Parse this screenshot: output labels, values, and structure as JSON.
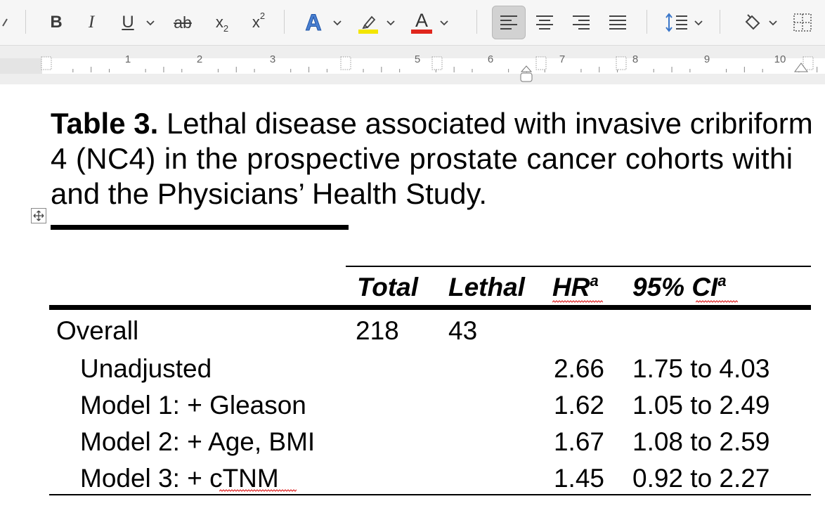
{
  "toolbar": {
    "bold": "B",
    "italic": "I",
    "underline": "U",
    "strikethrough": "ab",
    "subscript_base": "x",
    "subscript_mark": "2",
    "superscript_base": "x",
    "superscript_mark": "2",
    "text_effects": "A",
    "font_color_letter": "A",
    "highlight_color": "#f3e600",
    "font_color": "#e0261d"
  },
  "ruler": {
    "numbers": [
      "1",
      "2",
      "3",
      "5",
      "6",
      "7",
      "8",
      "9",
      "10"
    ]
  },
  "document": {
    "caption_label": "Table 3.",
    "caption_line1": " Lethal disease associated with invasive cribriform",
    "caption_line2": "4 (NC4) in the prospective prostate cancer cohorts withi",
    "caption_line3": "and the Physicians’ Health Study.",
    "table": {
      "headers": [
        {
          "text": "Total",
          "sup": ""
        },
        {
          "text": "Lethal",
          "sup": ""
        },
        {
          "text": "HR",
          "sup": "a"
        },
        {
          "text": "95% CI",
          "sup": "a"
        }
      ],
      "rows": [
        {
          "label": "Overall",
          "total": "218",
          "lethal": "43",
          "hr": "",
          "ci": ""
        },
        {
          "label": "Unadjusted",
          "total": "",
          "lethal": "",
          "hr": "2.66",
          "ci": "1.75 to 4.03"
        },
        {
          "label": "Model 1: + Gleason",
          "total": "",
          "lethal": "",
          "hr": "1.62",
          "ci": "1.05 to 2.49"
        },
        {
          "label": "Model 2: + Age, BMI",
          "total": "",
          "lethal": "",
          "hr": "1.67",
          "ci": "1.08 to 2.59"
        },
        {
          "label": "Model 3: + cTNM",
          "total": "",
          "lethal": "",
          "hr": "1.45",
          "ci": "0.92 to 2.27"
        }
      ]
    }
  }
}
